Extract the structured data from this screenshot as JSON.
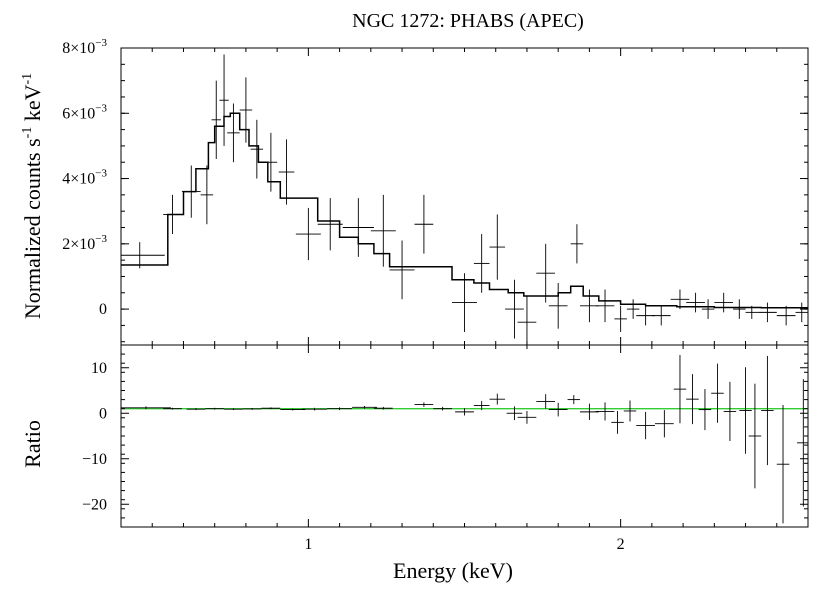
{
  "chart_data": [
    {
      "type": "scatter",
      "panel": "spectrum",
      "title": "NGC 1272: PHABS (APEC)",
      "ylabel_parts": [
        "Normalized counts s",
        "-1",
        " keV",
        "-1"
      ],
      "xlim": [
        0.4,
        2.6
      ],
      "ylim": [
        -0.0011,
        0.008
      ],
      "yticks": [
        {
          "value": 0.008,
          "label": "8×10",
          "exp": "−3"
        },
        {
          "value": 0.006,
          "label": "6×10",
          "exp": "−3"
        },
        {
          "value": 0.004,
          "label": "4×10",
          "exp": "−3"
        },
        {
          "value": 0.002,
          "label": "2×10",
          "exp": "−3"
        },
        {
          "value": 0,
          "label": "0",
          "exp": ""
        }
      ],
      "series": [
        {
          "type": "errorbar",
          "points": [
            {
              "x": 0.46,
              "xerr": 0.08,
              "y": 0.00165,
              "yerr": 0.0004
            },
            {
              "x": 0.565,
              "xerr": 0.03,
              "y": 0.0029,
              "yerr": 0.0006
            },
            {
              "x": 0.625,
              "xerr": 0.03,
              "y": 0.0036,
              "yerr": 0.0008
            },
            {
              "x": 0.675,
              "xerr": 0.02,
              "y": 0.0035,
              "yerr": 0.0009
            },
            {
              "x": 0.705,
              "xerr": 0.015,
              "y": 0.0058,
              "yerr": 0.0012
            },
            {
              "x": 0.73,
              "xerr": 0.015,
              "y": 0.0064,
              "yerr": 0.0014
            },
            {
              "x": 0.76,
              "xerr": 0.02,
              "y": 0.0054,
              "yerr": 0.0009
            },
            {
              "x": 0.8,
              "xerr": 0.02,
              "y": 0.0061,
              "yerr": 0.001
            },
            {
              "x": 0.835,
              "xerr": 0.02,
              "y": 0.0049,
              "yerr": 0.0009
            },
            {
              "x": 0.88,
              "xerr": 0.02,
              "y": 0.0045,
              "yerr": 0.0009
            },
            {
              "x": 0.93,
              "xerr": 0.025,
              "y": 0.0042,
              "yerr": 0.001
            },
            {
              "x": 1.0,
              "xerr": 0.04,
              "y": 0.0023,
              "yerr": 0.0008
            },
            {
              "x": 1.07,
              "xerr": 0.04,
              "y": 0.0026,
              "yerr": 0.0008
            },
            {
              "x": 1.16,
              "xerr": 0.05,
              "y": 0.0025,
              "yerr": 0.0009
            },
            {
              "x": 1.24,
              "xerr": 0.04,
              "y": 0.0024,
              "yerr": 0.0011
            },
            {
              "x": 1.3,
              "xerr": 0.04,
              "y": 0.0012,
              "yerr": 0.0009
            },
            {
              "x": 1.37,
              "xerr": 0.03,
              "y": 0.0026,
              "yerr": 0.0009
            },
            {
              "x": 1.5,
              "xerr": 0.04,
              "y": 0.0002,
              "yerr": 0.0009
            },
            {
              "x": 1.555,
              "xerr": 0.025,
              "y": 0.0014,
              "yerr": 0.0009
            },
            {
              "x": 1.605,
              "xerr": 0.025,
              "y": 0.0019,
              "yerr": 0.001
            },
            {
              "x": 1.66,
              "xerr": 0.03,
              "y": 0.0,
              "yerr": 0.0009
            },
            {
              "x": 1.7,
              "xerr": 0.03,
              "y": -0.0004,
              "yerr": 0.0008
            },
            {
              "x": 1.76,
              "xerr": 0.03,
              "y": 0.0011,
              "yerr": 0.0009
            },
            {
              "x": 1.8,
              "xerr": 0.03,
              "y": 0.0001,
              "yerr": 0.0007
            },
            {
              "x": 1.86,
              "xerr": 0.02,
              "y": 0.002,
              "yerr": 0.0006
            },
            {
              "x": 1.9,
              "xerr": 0.03,
              "y": 0.0001,
              "yerr": 0.0005
            },
            {
              "x": 1.95,
              "xerr": 0.03,
              "y": 0.0001,
              "yerr": 0.0005
            },
            {
              "x": 2.0,
              "xerr": 0.02,
              "y": -0.0003,
              "yerr": 0.0004
            },
            {
              "x": 2.04,
              "xerr": 0.02,
              "y": 0.0,
              "yerr": 0.0003
            },
            {
              "x": 2.08,
              "xerr": 0.03,
              "y": -0.0002,
              "yerr": 0.0003
            },
            {
              "x": 2.13,
              "xerr": 0.03,
              "y": -0.0002,
              "yerr": 0.0003
            },
            {
              "x": 2.19,
              "xerr": 0.03,
              "y": 0.0003,
              "yerr": 0.0003
            },
            {
              "x": 2.24,
              "xerr": 0.03,
              "y": 0.0002,
              "yerr": 0.0003
            },
            {
              "x": 2.28,
              "xerr": 0.02,
              "y": 0.0,
              "yerr": 0.0003
            },
            {
              "x": 2.33,
              "xerr": 0.03,
              "y": 0.0002,
              "yerr": 0.0003
            },
            {
              "x": 2.38,
              "xerr": 0.02,
              "y": 0.0,
              "yerr": 0.0003
            },
            {
              "x": 2.42,
              "xerr": 0.02,
              "y": -0.0001,
              "yerr": 0.0002
            },
            {
              "x": 2.47,
              "xerr": 0.03,
              "y": -0.0001,
              "yerr": 0.0003
            },
            {
              "x": 2.53,
              "xerr": 0.03,
              "y": -0.0002,
              "yerr": 0.0003
            },
            {
              "x": 2.58,
              "xerr": 0.02,
              "y": -0.0001,
              "yerr": 0.0003
            }
          ]
        },
        {
          "type": "step",
          "color": "#000000",
          "steps": [
            {
              "x0": 0.4,
              "x1": 0.55,
              "y": 0.00135
            },
            {
              "x0": 0.55,
              "x1": 0.6,
              "y": 0.0029
            },
            {
              "x0": 0.6,
              "x1": 0.64,
              "y": 0.0036
            },
            {
              "x0": 0.64,
              "x1": 0.68,
              "y": 0.0043
            },
            {
              "x0": 0.68,
              "x1": 0.7,
              "y": 0.0051
            },
            {
              "x0": 0.7,
              "x1": 0.73,
              "y": 0.0056
            },
            {
              "x0": 0.73,
              "x1": 0.75,
              "y": 0.0059
            },
            {
              "x0": 0.75,
              "x1": 0.78,
              "y": 0.006
            },
            {
              "x0": 0.78,
              "x1": 0.81,
              "y": 0.0055
            },
            {
              "x0": 0.81,
              "x1": 0.84,
              "y": 0.005
            },
            {
              "x0": 0.84,
              "x1": 0.87,
              "y": 0.0045
            },
            {
              "x0": 0.87,
              "x1": 0.91,
              "y": 0.0039
            },
            {
              "x0": 0.91,
              "x1": 0.96,
              "y": 0.0034
            },
            {
              "x0": 0.96,
              "x1": 1.03,
              "y": 0.0034
            },
            {
              "x0": 1.03,
              "x1": 1.1,
              "y": 0.0027
            },
            {
              "x0": 1.1,
              "x1": 1.16,
              "y": 0.0022
            },
            {
              "x0": 1.16,
              "x1": 1.21,
              "y": 0.002
            },
            {
              "x0": 1.21,
              "x1": 1.26,
              "y": 0.0017
            },
            {
              "x0": 1.26,
              "x1": 1.33,
              "y": 0.0013
            },
            {
              "x0": 1.33,
              "x1": 1.4,
              "y": 0.0013
            },
            {
              "x0": 1.4,
              "x1": 1.46,
              "y": 0.0013
            },
            {
              "x0": 1.46,
              "x1": 1.53,
              "y": 0.0009
            },
            {
              "x0": 1.53,
              "x1": 1.58,
              "y": 0.0008
            },
            {
              "x0": 1.58,
              "x1": 1.64,
              "y": 0.0006
            },
            {
              "x0": 1.64,
              "x1": 1.69,
              "y": 0.0005
            },
            {
              "x0": 1.69,
              "x1": 1.75,
              "y": 0.0004
            },
            {
              "x0": 1.75,
              "x1": 1.8,
              "y": 0.0004
            },
            {
              "x0": 1.8,
              "x1": 1.84,
              "y": 0.0005
            },
            {
              "x0": 1.84,
              "x1": 1.88,
              "y": 0.0007
            },
            {
              "x0": 1.88,
              "x1": 1.93,
              "y": 0.0004
            },
            {
              "x0": 1.93,
              "x1": 2.0,
              "y": 0.00025
            },
            {
              "x0": 2.0,
              "x1": 2.08,
              "y": 0.00015
            },
            {
              "x0": 2.08,
              "x1": 2.18,
              "y": 0.0001
            },
            {
              "x0": 2.18,
              "x1": 2.3,
              "y": 7e-05
            },
            {
              "x0": 2.3,
              "x1": 2.45,
              "y": 5e-05
            },
            {
              "x0": 2.45,
              "x1": 2.6,
              "y": 4e-05
            }
          ]
        }
      ]
    },
    {
      "type": "scatter",
      "panel": "ratio",
      "xlabel": "Energy (keV)",
      "ylabel": "Ratio",
      "xlim": [
        0.4,
        2.6
      ],
      "ylim": [
        -25,
        15
      ],
      "xticks": [
        {
          "value": 1,
          "label": "1"
        },
        {
          "value": 2,
          "label": "2"
        }
      ],
      "yticks": [
        {
          "value": 10,
          "label": "10"
        },
        {
          "value": 0,
          "label": "0"
        },
        {
          "value": -10,
          "label": "−10"
        },
        {
          "value": -20,
          "label": "−20"
        }
      ],
      "series": [
        {
          "type": "reference-line",
          "y": 1,
          "color": "#33cc33"
        },
        {
          "type": "errorbar",
          "points": [
            {
              "x": 0.48,
              "xerr": 0.08,
              "y": 1.2,
              "yerr": 0.3
            },
            {
              "x": 0.565,
              "xerr": 0.03,
              "y": 1.0,
              "yerr": 0.2
            },
            {
              "x": 0.64,
              "xerr": 0.03,
              "y": 0.9,
              "yerr": 0.2
            },
            {
              "x": 0.7,
              "xerr": 0.03,
              "y": 1.0,
              "yerr": 0.2
            },
            {
              "x": 0.76,
              "xerr": 0.03,
              "y": 0.9,
              "yerr": 0.2
            },
            {
              "x": 0.82,
              "xerr": 0.03,
              "y": 0.95,
              "yerr": 0.2
            },
            {
              "x": 0.88,
              "xerr": 0.03,
              "y": 1.1,
              "yerr": 0.2
            },
            {
              "x": 0.95,
              "xerr": 0.04,
              "y": 0.8,
              "yerr": 0.2
            },
            {
              "x": 1.02,
              "xerr": 0.04,
              "y": 0.9,
              "yerr": 0.3
            },
            {
              "x": 1.1,
              "xerr": 0.04,
              "y": 1.0,
              "yerr": 0.3
            },
            {
              "x": 1.18,
              "xerr": 0.04,
              "y": 1.3,
              "yerr": 0.3
            },
            {
              "x": 1.24,
              "xerr": 0.03,
              "y": 1.1,
              "yerr": 0.3
            },
            {
              "x": 1.37,
              "xerr": 0.03,
              "y": 1.9,
              "yerr": 0.5
            },
            {
              "x": 1.43,
              "xerr": 0.03,
              "y": 1.0,
              "yerr": 0.4
            },
            {
              "x": 1.5,
              "xerr": 0.03,
              "y": 0.3,
              "yerr": 0.8
            },
            {
              "x": 1.555,
              "xerr": 0.025,
              "y": 1.7,
              "yerr": 1.0
            },
            {
              "x": 1.605,
              "xerr": 0.025,
              "y": 3.1,
              "yerr": 1.2
            },
            {
              "x": 1.66,
              "xerr": 0.025,
              "y": 0.0,
              "yerr": 1.5
            },
            {
              "x": 1.7,
              "xerr": 0.03,
              "y": -0.9,
              "yerr": 1.4
            },
            {
              "x": 1.76,
              "xerr": 0.03,
              "y": 2.6,
              "yerr": 1.6
            },
            {
              "x": 1.8,
              "xerr": 0.03,
              "y": 0.8,
              "yerr": 1.5
            },
            {
              "x": 1.85,
              "xerr": 0.02,
              "y": 3.0,
              "yerr": 1.0
            },
            {
              "x": 1.9,
              "xerr": 0.03,
              "y": 0.3,
              "yerr": 1.8
            },
            {
              "x": 1.95,
              "xerr": 0.03,
              "y": 0.4,
              "yerr": 2.0
            },
            {
              "x": 1.99,
              "xerr": 0.02,
              "y": -2.0,
              "yerr": 2.5
            },
            {
              "x": 2.03,
              "xerr": 0.02,
              "y": 0.5,
              "yerr": 2.3
            },
            {
              "x": 2.08,
              "xerr": 0.03,
              "y": -2.7,
              "yerr": 3.0
            },
            {
              "x": 2.14,
              "xerr": 0.03,
              "y": -2.3,
              "yerr": 3.0
            },
            {
              "x": 2.19,
              "xerr": 0.02,
              "y": 5.3,
              "yerr": 7.5
            },
            {
              "x": 2.23,
              "xerr": 0.02,
              "y": 3.1,
              "yerr": 5.5
            },
            {
              "x": 2.27,
              "xerr": 0.02,
              "y": 0.8,
              "yerr": 4.5
            },
            {
              "x": 2.31,
              "xerr": 0.02,
              "y": 4.4,
              "yerr": 6.5
            },
            {
              "x": 2.35,
              "xerr": 0.02,
              "y": 0.4,
              "yerr": 6.5
            },
            {
              "x": 2.4,
              "xerr": 0.02,
              "y": 0.6,
              "yerr": 9.5
            },
            {
              "x": 2.43,
              "xerr": 0.02,
              "y": -5.0,
              "yerr": 11.5
            },
            {
              "x": 2.47,
              "xerr": 0.02,
              "y": 0.6,
              "yerr": 12.0
            },
            {
              "x": 2.52,
              "xerr": 0.02,
              "y": -11.2,
              "yerr": 13.0
            },
            {
              "x": 2.585,
              "xerr": 0.02,
              "y": -6.5,
              "yerr": 14.0
            }
          ]
        }
      ]
    }
  ]
}
